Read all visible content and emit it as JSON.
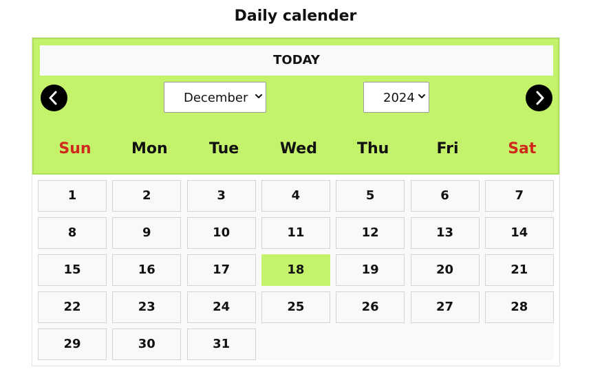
{
  "page": {
    "title": "Daily calender"
  },
  "header": {
    "today_label": "TODAY",
    "prev_icon": "chevron-left-icon",
    "next_icon": "chevron-right-icon",
    "month_select": {
      "selected": "December"
    },
    "year_select": {
      "selected": "2024"
    }
  },
  "weekdays": [
    "Sun",
    "Mon",
    "Tue",
    "Wed",
    "Thu",
    "Fri",
    "Sat"
  ],
  "weekend_days": [
    "Sun",
    "Sat"
  ],
  "days": [
    "1",
    "2",
    "3",
    "4",
    "5",
    "6",
    "7",
    "8",
    "9",
    "10",
    "11",
    "12",
    "13",
    "14",
    "15",
    "16",
    "17",
    "18",
    "19",
    "20",
    "21",
    "22",
    "23",
    "24",
    "25",
    "26",
    "27",
    "28",
    "29",
    "30",
    "31"
  ],
  "first_weekday_index": 0,
  "selected_day": "18",
  "colors": {
    "header_background": "#c4f36b",
    "header_border": "#a7e354",
    "selected_day_background": "#c4f36b",
    "weekend_text": "#d02a1d",
    "nav_button": "#000000",
    "day_cell_background": "#f8f9fb",
    "day_cell_border": "#d3d4d6"
  }
}
